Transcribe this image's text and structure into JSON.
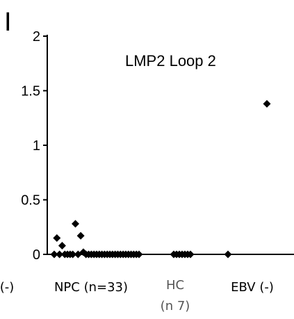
{
  "chart_data": {
    "type": "scatter",
    "panel_label": "I",
    "title": "LMP2 Loop 2",
    "xlabel": "",
    "ylabel": "",
    "ylim": [
      0,
      2
    ],
    "y_ticks": [
      "0",
      "0.5",
      "1",
      "1.5",
      "2"
    ],
    "grid": false,
    "groups": [
      {
        "label": "(-)",
        "sublabel": "",
        "values": []
      },
      {
        "label": "NPC (n=33)",
        "sublabel": "",
        "values": [
          0.0,
          0.15,
          0.0,
          0.08,
          0.0,
          0.0,
          0.0,
          0.0,
          0.28,
          0.0,
          0.17,
          0.02,
          0.0,
          0.0,
          0.0,
          0.0,
          0.0,
          0.0,
          0.0,
          0.0,
          0.0,
          0.0,
          0.0,
          0.0,
          0.0,
          0.0,
          0.0,
          0.0,
          0.0,
          0.0,
          0.0,
          0.0,
          0.0
        ]
      },
      {
        "label": "HC",
        "sublabel": "(n 7)",
        "values": [
          0.0,
          0.0,
          0.0,
          0.0,
          0.0,
          0.0,
          0.0
        ]
      },
      {
        "label": "EBV (-)",
        "sublabel": "",
        "values": [
          0.0,
          1.38
        ]
      }
    ],
    "marker_color": "#000000"
  }
}
